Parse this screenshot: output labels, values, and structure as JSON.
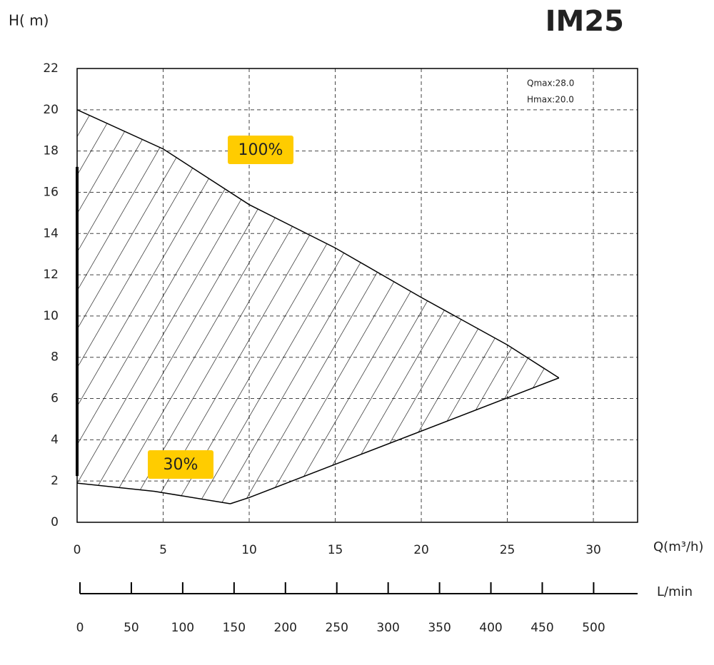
{
  "chart_data": {
    "type": "pump-curve",
    "title": "IM25",
    "y_label": "H( m)",
    "x_label": "Q(m³/h)",
    "x2_label": "L/min",
    "annotations": [
      "Qmax:28.0",
      "Hmax:20.0"
    ],
    "xlim": [
      0,
      32.57
    ],
    "xticks": [
      0,
      5,
      10,
      15,
      20,
      25,
      30
    ],
    "ylim": [
      0,
      22
    ],
    "yticks": [
      0,
      2,
      4,
      6,
      8,
      10,
      12,
      14,
      16,
      18,
      20,
      22
    ],
    "x2lim": [
      0,
      542.8
    ],
    "x2ticks": [
      0,
      50,
      100,
      150,
      200,
      250,
      300,
      350,
      400,
      450,
      500
    ],
    "grid": true,
    "color": "#000000",
    "label_color": "#ffcc00",
    "curves": [
      {
        "label": "100%",
        "x": [
          0,
          5,
          10,
          15,
          20,
          25,
          28
        ],
        "y": [
          20,
          18.1,
          15.4,
          13.3,
          10.9,
          8.6,
          7.0
        ]
      },
      {
        "label": "30%",
        "x": [
          0,
          4.5,
          8.9
        ],
        "y": [
          1.9,
          1.5,
          0.9
        ]
      },
      {
        "x": [
          8.9,
          10,
          28
        ],
        "y": [
          0.9,
          1.2,
          7.0
        ]
      }
    ]
  }
}
